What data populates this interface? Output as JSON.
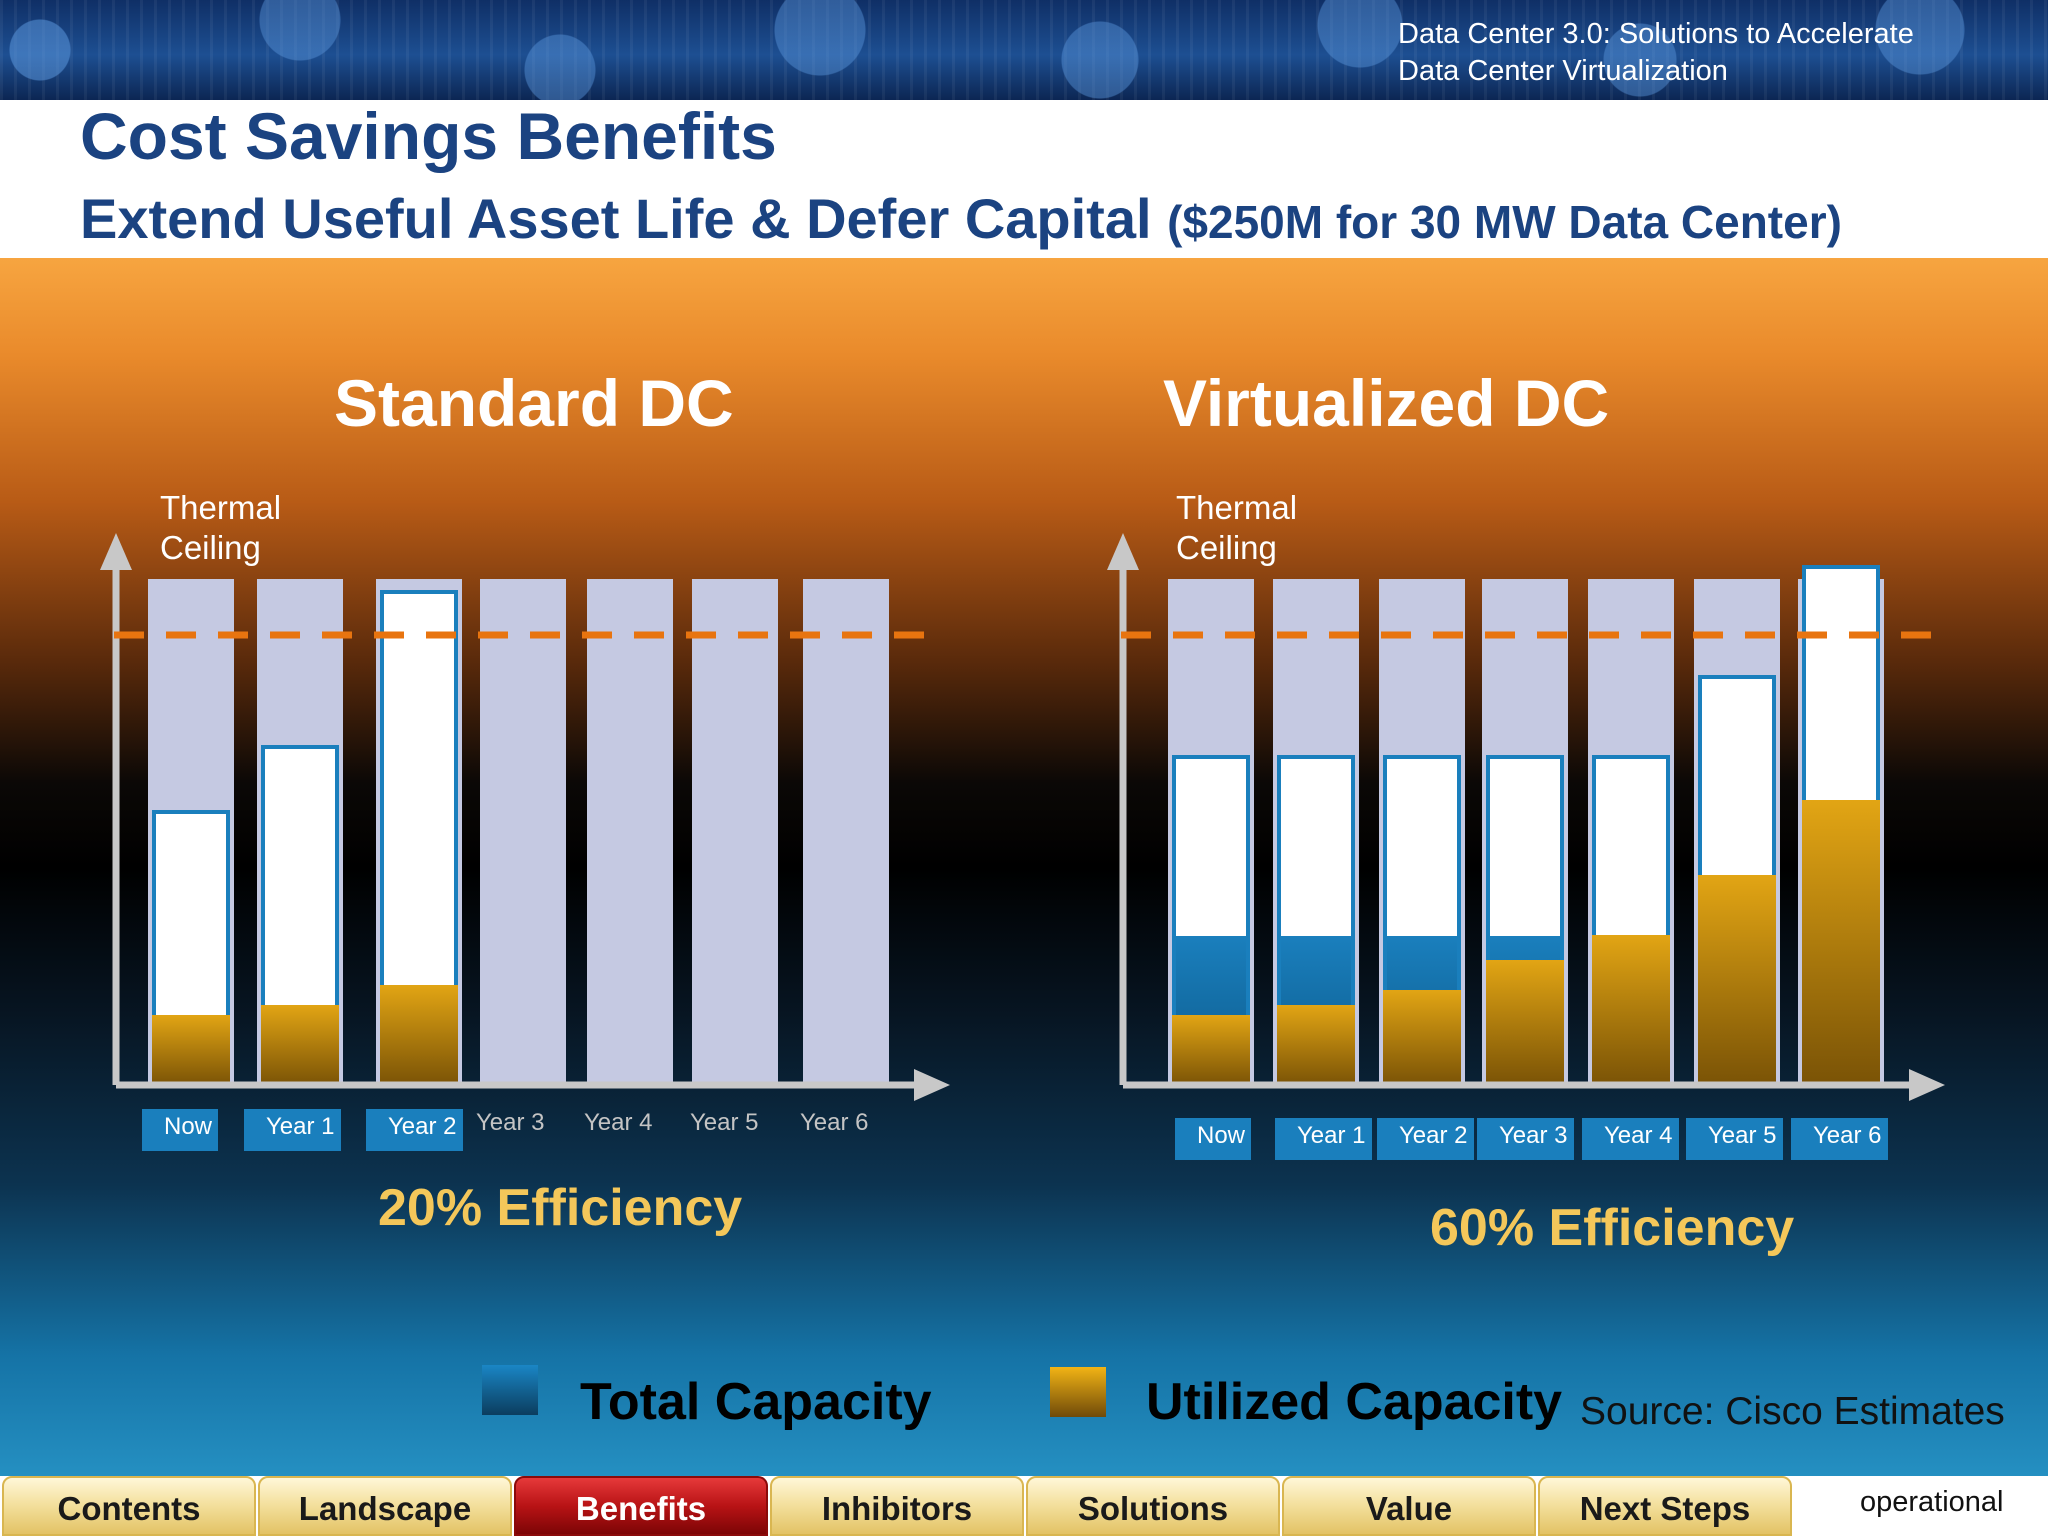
{
  "banner": {
    "line1": "Data Center 3.0: Solutions to Accelerate",
    "line2": "Data Center Virtualization"
  },
  "header": {
    "title": "Cost Savings Benefits",
    "subtitle": "Extend Useful Asset Life & Defer Capital",
    "subtitle_note": "($250M for 30 MW Data Center)"
  },
  "colors": {
    "total_capacity": "#1a7fbd",
    "utilized_capacity": "#e2a514",
    "thermal_ceiling": "#e8740f",
    "bar_background": "#c5c9e2"
  },
  "chart_data": [
    {
      "type": "bar",
      "title": "Standard DC",
      "axis_label": "Thermal Ceiling",
      "categories": [
        "Now",
        "Year 1",
        "Year 2",
        "Year 3",
        "Year 4",
        "Year 5",
        "Year 6"
      ],
      "series": [
        {
          "name": "Total Capacity",
          "values": [
            55,
            68,
            99,
            null,
            null,
            null,
            null
          ]
        },
        {
          "name": "Utilized Capacity",
          "values": [
            14,
            16,
            20,
            null,
            null,
            null,
            null
          ]
        }
      ],
      "thermal_ceiling": 90,
      "ylim": [
        0,
        100
      ],
      "efficiency": "20% Efficiency"
    },
    {
      "type": "bar",
      "title": "Virtualized DC",
      "axis_label": "Thermal Ceiling",
      "categories": [
        "Now",
        "Year 1",
        "Year 2",
        "Year 3",
        "Year 4",
        "Year 5",
        "Year 6"
      ],
      "series": [
        {
          "name": "Total Capacity",
          "values": [
            66,
            66,
            66,
            66,
            66,
            82,
            104
          ]
        },
        {
          "name": "Utilized Capacity",
          "values": [
            14,
            16,
            19,
            25,
            30,
            42,
            57
          ]
        }
      ],
      "thermal_ceiling": 90,
      "ylim": [
        0,
        100
      ],
      "efficiency": "60% Efficiency"
    }
  ],
  "legend": {
    "total": "Total Capacity",
    "utilized": "Utilized Capacity"
  },
  "source": "Source: Cisco Estimates",
  "nav": {
    "tabs": [
      "Contents",
      "Landscape",
      "Benefits",
      "Inhibitors",
      "Solutions",
      "Value",
      "Next Steps"
    ],
    "active": "Benefits"
  },
  "footer_note": "operational"
}
